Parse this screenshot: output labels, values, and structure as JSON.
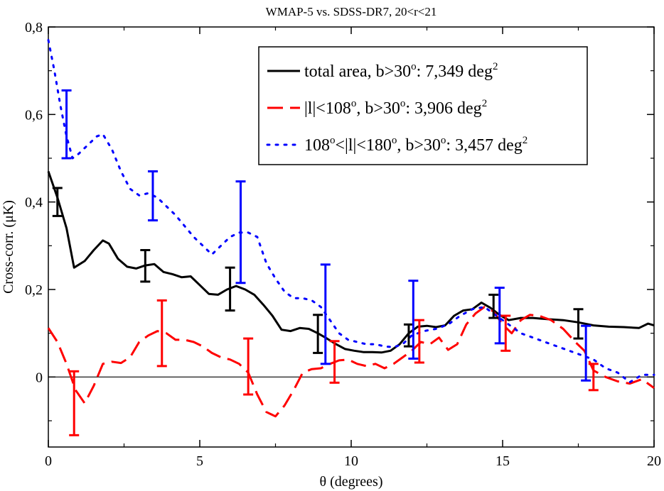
{
  "chart_data": {
    "type": "line",
    "title": "WMAP-5 vs. SDSS-DR7, 20<r<21",
    "xlabel": "θ (degrees)",
    "ylabel": "Cross-corr. (μK)",
    "xlim": [
      0,
      20
    ],
    "ylim": [
      -0.16,
      0.8
    ],
    "x_ticks": [
      0,
      5,
      10,
      15,
      20
    ],
    "x_tick_labels": [
      "0",
      "5",
      "10",
      "15",
      "20"
    ],
    "y_ticks": [
      0,
      0.2,
      0.4,
      0.6,
      0.8
    ],
    "y_tick_labels": [
      "0",
      "0,2",
      "0,4",
      "0,6",
      "0,8"
    ],
    "zero_line": true,
    "grid": false,
    "legend_position": "top-right",
    "series": [
      {
        "name_parts": [
          "total area, b>30",
          "o",
          ": 7,349 deg",
          "2"
        ],
        "color": "#000000",
        "style": "solid",
        "x": [
          0,
          0.3,
          0.6,
          0.85,
          1.2,
          1.5,
          1.8,
          2.0,
          2.3,
          2.6,
          2.9,
          3.2,
          3.5,
          3.8,
          4.1,
          4.4,
          4.7,
          5.0,
          5.3,
          5.6,
          5.9,
          6.2,
          6.5,
          6.8,
          7.1,
          7.4,
          7.7,
          8.0,
          8.3,
          8.6,
          8.9,
          9.2,
          9.5,
          9.8,
          10.1,
          10.4,
          10.7,
          11.0,
          11.3,
          11.6,
          11.9,
          12.2,
          12.5,
          12.8,
          13.1,
          13.4,
          13.7,
          14.0,
          14.3,
          14.6,
          14.9,
          15.2,
          15.6,
          16.0,
          16.5,
          17.0,
          17.5,
          18.0,
          18.5,
          19.0,
          19.5,
          19.8,
          20.0
        ],
        "y": [
          0.47,
          0.41,
          0.34,
          0.25,
          0.265,
          0.29,
          0.312,
          0.305,
          0.27,
          0.252,
          0.248,
          0.255,
          0.258,
          0.24,
          0.235,
          0.228,
          0.23,
          0.21,
          0.19,
          0.188,
          0.2,
          0.208,
          0.2,
          0.188,
          0.165,
          0.14,
          0.108,
          0.105,
          0.112,
          0.11,
          0.1,
          0.088,
          0.075,
          0.064,
          0.06,
          0.057,
          0.057,
          0.056,
          0.06,
          0.075,
          0.1,
          0.115,
          0.117,
          0.114,
          0.118,
          0.14,
          0.152,
          0.155,
          0.17,
          0.158,
          0.142,
          0.13,
          0.135,
          0.135,
          0.132,
          0.13,
          0.125,
          0.118,
          0.115,
          0.114,
          0.112,
          0.122,
          0.118
        ],
        "error_bars": [
          {
            "x": 0.3,
            "low": 0.368,
            "high": 0.432
          },
          {
            "x": 3.2,
            "low": 0.218,
            "high": 0.29
          },
          {
            "x": 6.0,
            "low": 0.152,
            "high": 0.25
          },
          {
            "x": 8.9,
            "low": 0.055,
            "high": 0.142
          },
          {
            "x": 11.9,
            "low": 0.07,
            "high": 0.12
          },
          {
            "x": 14.7,
            "low": 0.135,
            "high": 0.188
          },
          {
            "x": 17.5,
            "low": 0.088,
            "high": 0.155
          }
        ]
      },
      {
        "name_parts": [
          "|l|<108",
          "o",
          ", b>30",
          "o",
          ": 3,906 deg",
          "2"
        ],
        "color": "#ff0000",
        "style": "dashed",
        "x": [
          0,
          0.3,
          0.6,
          0.9,
          1.2,
          1.5,
          1.8,
          2.1,
          2.4,
          2.7,
          3.0,
          3.3,
          3.6,
          3.9,
          4.2,
          4.5,
          4.8,
          5.1,
          5.4,
          5.7,
          6.0,
          6.3,
          6.6,
          6.9,
          7.2,
          7.5,
          7.8,
          8.1,
          8.4,
          8.7,
          9.0,
          9.3,
          9.6,
          9.9,
          10.2,
          10.5,
          10.8,
          11.1,
          11.4,
          11.7,
          12.0,
          12.3,
          12.6,
          12.9,
          13.2,
          13.5,
          13.8,
          14.1,
          14.4,
          14.7,
          15.0,
          15.3,
          15.6,
          15.9,
          16.2,
          16.6,
          17.0,
          17.4,
          17.7,
          18.0,
          18.4,
          18.8,
          19.2,
          19.6,
          20.0
        ],
        "y": [
          0.112,
          0.08,
          0.03,
          -0.03,
          -0.06,
          -0.02,
          0.03,
          0.035,
          0.032,
          0.045,
          0.08,
          0.095,
          0.105,
          0.1,
          0.085,
          0.085,
          0.08,
          0.07,
          0.055,
          0.045,
          0.04,
          0.03,
          0.01,
          -0.04,
          -0.08,
          -0.09,
          -0.065,
          -0.03,
          0.01,
          0.018,
          0.02,
          0.03,
          0.038,
          0.04,
          0.03,
          0.025,
          0.03,
          0.02,
          0.03,
          0.045,
          0.06,
          0.08,
          0.075,
          0.09,
          0.062,
          0.075,
          0.12,
          0.145,
          0.16,
          0.15,
          0.12,
          0.1,
          0.13,
          0.142,
          0.14,
          0.13,
          0.11,
          0.08,
          0.06,
          0.015,
          0.0,
          -0.01,
          -0.015,
          -0.005,
          -0.025
        ],
        "error_bars": [
          {
            "x": 0.85,
            "low": -0.133,
            "high": 0.013
          },
          {
            "x": 3.75,
            "low": 0.025,
            "high": 0.175
          },
          {
            "x": 6.6,
            "low": -0.04,
            "high": 0.088
          },
          {
            "x": 9.45,
            "low": -0.013,
            "high": 0.082
          },
          {
            "x": 12.25,
            "low": 0.033,
            "high": 0.13
          },
          {
            "x": 15.1,
            "low": 0.06,
            "high": 0.14
          },
          {
            "x": 18.0,
            "low": -0.03,
            "high": 0.03
          }
        ]
      },
      {
        "name_parts": [
          "108",
          "o",
          "<|l|<180",
          "o",
          ", b>30",
          "o",
          ": 3,457 deg",
          "2"
        ],
        "color": "#0000ff",
        "style": "dotted",
        "x": [
          0,
          0.2,
          0.4,
          0.6,
          0.8,
          1.0,
          1.3,
          1.6,
          1.8,
          2.1,
          2.4,
          2.7,
          3.0,
          3.3,
          3.6,
          3.9,
          4.2,
          4.5,
          4.8,
          5.1,
          5.4,
          5.7,
          6.0,
          6.3,
          6.6,
          6.9,
          7.2,
          7.5,
          7.8,
          8.1,
          8.4,
          8.7,
          9.0,
          9.3,
          9.6,
          9.9,
          10.2,
          10.5,
          10.8,
          11.1,
          11.4,
          11.7,
          12.0,
          12.4,
          12.8,
          13.2,
          13.6,
          14.0,
          14.4,
          14.8,
          15.2,
          15.6,
          16.0,
          16.4,
          16.8,
          17.2,
          17.6,
          18.0,
          18.4,
          18.8,
          19.2,
          19.6,
          20.0
        ],
        "y": [
          0.77,
          0.7,
          0.62,
          0.55,
          0.5,
          0.51,
          0.53,
          0.55,
          0.555,
          0.52,
          0.47,
          0.43,
          0.415,
          0.42,
          0.41,
          0.39,
          0.37,
          0.345,
          0.32,
          0.3,
          0.28,
          0.3,
          0.32,
          0.33,
          0.33,
          0.32,
          0.26,
          0.225,
          0.195,
          0.18,
          0.18,
          0.175,
          0.16,
          0.13,
          0.1,
          0.085,
          0.08,
          0.075,
          0.075,
          0.07,
          0.068,
          0.075,
          0.095,
          0.105,
          0.11,
          0.12,
          0.14,
          0.155,
          0.16,
          0.14,
          0.12,
          0.1,
          0.09,
          0.08,
          0.07,
          0.06,
          0.05,
          0.04,
          0.02,
          0.01,
          -0.012,
          0.005,
          0.005
        ],
        "error_bars": [
          {
            "x": 0.6,
            "low": 0.5,
            "high": 0.655
          },
          {
            "x": 3.45,
            "low": 0.358,
            "high": 0.47
          },
          {
            "x": 6.35,
            "low": 0.215,
            "high": 0.447
          },
          {
            "x": 9.15,
            "low": 0.03,
            "high": 0.257
          },
          {
            "x": 12.05,
            "low": 0.042,
            "high": 0.22
          },
          {
            "x": 14.9,
            "low": 0.077,
            "high": 0.204
          },
          {
            "x": 17.75,
            "low": -0.008,
            "high": 0.117
          }
        ]
      }
    ]
  }
}
